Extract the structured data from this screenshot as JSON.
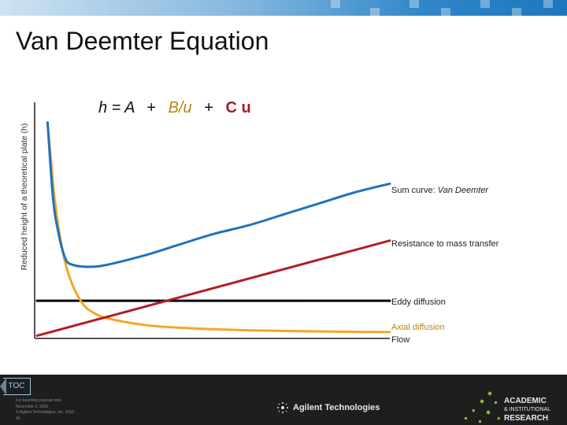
{
  "slide": {
    "title": "Van Deemter Equation"
  },
  "equation": {
    "h": "h = A",
    "plus1": "+",
    "b_term": "B/u",
    "plus2": "+",
    "c_term": "C u"
  },
  "colors": {
    "blue": "#1e73be",
    "orange": "#f5a623",
    "red": "#b01f24",
    "black": "#000000"
  },
  "chart_data": {
    "type": "line",
    "title": "",
    "xlabel": "",
    "ylabel": "Reduced height of a theoretical plate (h)",
    "xlim": [
      0,
      10
    ],
    "ylim": [
      0,
      10
    ],
    "grid": false,
    "series": [
      {
        "name": "Sum curve: Van Deemter",
        "color": "#1e73be",
        "x": [
          0.3,
          0.45,
          0.6,
          0.8,
          1.0,
          1.5,
          2,
          3,
          4,
          5,
          6,
          7,
          8,
          9,
          10
        ],
        "y": [
          9.8,
          6.4,
          4.8,
          3.6,
          3.3,
          3.2,
          3.3,
          3.7,
          4.2,
          4.7,
          5.1,
          5.6,
          6.1,
          6.6,
          7.0
        ]
      },
      {
        "name": "Resistance to mass transfer",
        "color": "#b01f24",
        "x": [
          0,
          10
        ],
        "y": [
          0.05,
          4.4
        ]
      },
      {
        "name": "Eddy diffusion",
        "color": "#000000",
        "x": [
          0,
          10
        ],
        "y": [
          1.65,
          1.65
        ]
      },
      {
        "name": "Axial diffusion",
        "color": "#f5a623",
        "x": [
          0.3,
          0.4,
          0.5,
          0.65,
          0.8,
          1.0,
          1.3,
          1.6,
          2,
          3,
          4,
          5,
          6,
          7,
          8,
          9,
          10
        ],
        "y": [
          9.8,
          8.0,
          6.3,
          4.6,
          3.4,
          2.4,
          1.5,
          1.1,
          0.85,
          0.55,
          0.42,
          0.35,
          0.3,
          0.27,
          0.25,
          0.23,
          0.22
        ]
      }
    ],
    "labels": {
      "sum": {
        "prefix": "Sum curve: ",
        "italic": "Van Deemter"
      },
      "mass": "Resistance to mass transfer",
      "eddy": "Eddy diffusion",
      "axial": "Axial diffusion",
      "flow": "Flow"
    }
  },
  "footer": {
    "toc": "TOC",
    "fine_lines": [
      "For teaching purpose only",
      "November 3, 2020",
      "© Agilent Technologies, Inc. 2016",
      "24"
    ],
    "company": "Agilent Technologies",
    "program": [
      "ACADEMIC",
      "& INSTITUTIONAL",
      "RESEARCH"
    ]
  }
}
